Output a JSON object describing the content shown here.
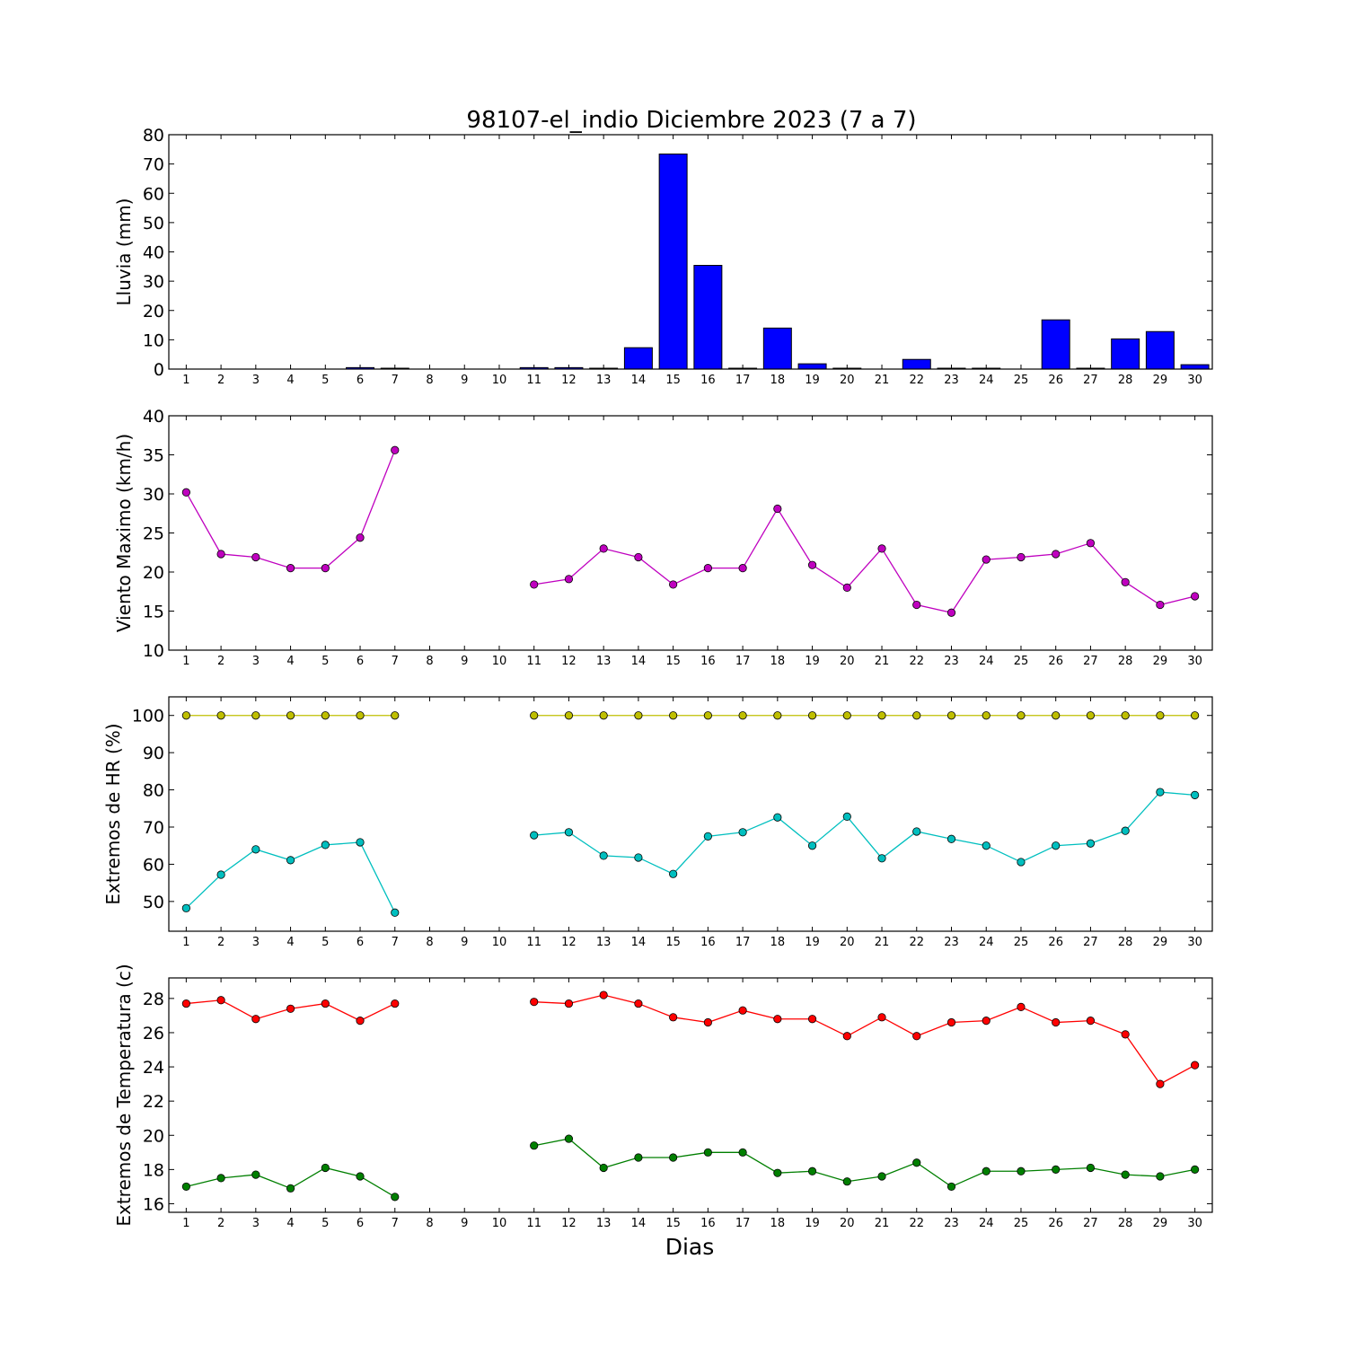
{
  "title": "98107-el_indio Diciembre 2023  (7 a 7)",
  "xlabel": "Dias",
  "chart_data": [
    {
      "type": "bar",
      "ylabel": "Lluvia (mm)",
      "ylim": [
        0,
        80
      ],
      "yticks": [
        0,
        10,
        20,
        30,
        40,
        50,
        60,
        70,
        80
      ],
      "xticks": [
        1,
        2,
        3,
        4,
        5,
        6,
        7,
        8,
        9,
        10,
        11,
        12,
        13,
        14,
        15,
        16,
        17,
        18,
        19,
        20,
        21,
        22,
        23,
        24,
        25,
        26,
        27,
        28,
        29,
        30
      ],
      "color": "#0000ff",
      "x": [
        1,
        2,
        3,
        4,
        5,
        6,
        7,
        8,
        9,
        10,
        11,
        12,
        13,
        14,
        15,
        16,
        17,
        18,
        19,
        20,
        21,
        22,
        23,
        24,
        25,
        26,
        27,
        28,
        29,
        30
      ],
      "values": [
        0,
        0,
        0,
        0,
        0,
        0.5,
        0.3,
        0,
        0,
        0,
        0.5,
        0.5,
        0.3,
        7.3,
        73.4,
        35.4,
        0.3,
        14,
        1.8,
        0.3,
        0,
        3.3,
        0.3,
        0.3,
        0,
        16.8,
        0.3,
        10.3,
        12.8,
        1.5
      ]
    },
    {
      "type": "line",
      "ylabel": "Viento Maximo (km/h)",
      "ylim": [
        10,
        40
      ],
      "yticks": [
        10,
        15,
        20,
        25,
        30,
        35,
        40
      ],
      "xticks": [
        1,
        2,
        3,
        4,
        5,
        6,
        7,
        8,
        9,
        10,
        11,
        12,
        13,
        14,
        15,
        16,
        17,
        18,
        19,
        20,
        21,
        22,
        23,
        24,
        25,
        26,
        27,
        28,
        29,
        30
      ],
      "series": [
        {
          "color": "#bf00bf",
          "x": [
            1,
            2,
            3,
            4,
            5,
            6,
            7,
            8,
            9,
            10,
            11,
            12,
            13,
            14,
            15,
            16,
            17,
            18,
            19,
            20,
            21,
            22,
            23,
            24,
            25,
            26,
            27,
            28,
            29,
            30
          ],
          "values": [
            30.2,
            22.3,
            21.9,
            20.5,
            20.5,
            24.4,
            35.6,
            null,
            null,
            null,
            18.4,
            19.1,
            23.0,
            21.9,
            18.4,
            20.5,
            20.5,
            28.1,
            20.9,
            18.0,
            23.0,
            15.8,
            14.8,
            21.6,
            21.9,
            22.3,
            23.7,
            18.7,
            15.8,
            16.9
          ]
        }
      ]
    },
    {
      "type": "line",
      "ylabel": "Extremos de HR (%)",
      "ylim": [
        42,
        105
      ],
      "yticks": [
        50,
        60,
        70,
        80,
        90,
        100
      ],
      "xticks": [
        1,
        2,
        3,
        4,
        5,
        6,
        7,
        8,
        9,
        10,
        11,
        12,
        13,
        14,
        15,
        16,
        17,
        18,
        19,
        20,
        21,
        22,
        23,
        24,
        25,
        26,
        27,
        28,
        29,
        30
      ],
      "series": [
        {
          "color": "#bfbf00",
          "x": [
            1,
            2,
            3,
            4,
            5,
            6,
            7,
            8,
            9,
            10,
            11,
            12,
            13,
            14,
            15,
            16,
            17,
            18,
            19,
            20,
            21,
            22,
            23,
            24,
            25,
            26,
            27,
            28,
            29,
            30
          ],
          "values": [
            100,
            100,
            100,
            100,
            100,
            100,
            100,
            null,
            null,
            null,
            100,
            100,
            100,
            100,
            100,
            100,
            100,
            100,
            100,
            100,
            100,
            100,
            100,
            100,
            100,
            100,
            100,
            100,
            100,
            100
          ]
        },
        {
          "color": "#00bfbf",
          "x": [
            1,
            2,
            3,
            4,
            5,
            6,
            7,
            8,
            9,
            10,
            11,
            12,
            13,
            14,
            15,
            16,
            17,
            18,
            19,
            20,
            21,
            22,
            23,
            24,
            25,
            26,
            27,
            28,
            29,
            30
          ],
          "values": [
            48.2,
            57.2,
            64.0,
            61.1,
            65.2,
            65.9,
            47.0,
            null,
            null,
            null,
            67.8,
            68.6,
            62.3,
            61.8,
            57.4,
            67.5,
            68.6,
            72.6,
            65.0,
            72.8,
            61.6,
            68.8,
            66.8,
            65.0,
            60.6,
            65.0,
            65.6,
            69.0,
            79.4,
            78.6
          ]
        }
      ]
    },
    {
      "type": "line",
      "ylabel": "Extremos de Temperatura (c)",
      "ylim": [
        15.5,
        29.2
      ],
      "yticks": [
        16,
        18,
        20,
        22,
        24,
        26,
        28
      ],
      "xticks": [
        1,
        2,
        3,
        4,
        5,
        6,
        7,
        8,
        9,
        10,
        11,
        12,
        13,
        14,
        15,
        16,
        17,
        18,
        19,
        20,
        21,
        22,
        23,
        24,
        25,
        26,
        27,
        28,
        29,
        30
      ],
      "series": [
        {
          "color": "#ff0000",
          "x": [
            1,
            2,
            3,
            4,
            5,
            6,
            7,
            8,
            9,
            10,
            11,
            12,
            13,
            14,
            15,
            16,
            17,
            18,
            19,
            20,
            21,
            22,
            23,
            24,
            25,
            26,
            27,
            28,
            29,
            30
          ],
          "values": [
            27.7,
            27.9,
            26.8,
            27.4,
            27.7,
            26.7,
            27.7,
            null,
            null,
            null,
            27.8,
            27.7,
            28.2,
            27.7,
            26.9,
            26.6,
            27.3,
            26.8,
            26.8,
            25.8,
            26.9,
            25.8,
            26.6,
            26.7,
            27.5,
            26.6,
            26.7,
            25.9,
            23.0,
            24.1
          ]
        },
        {
          "color": "#007f00",
          "x": [
            1,
            2,
            3,
            4,
            5,
            6,
            7,
            8,
            9,
            10,
            11,
            12,
            13,
            14,
            15,
            16,
            17,
            18,
            19,
            20,
            21,
            22,
            23,
            24,
            25,
            26,
            27,
            28,
            29,
            30
          ],
          "values": [
            17.0,
            17.5,
            17.7,
            16.9,
            18.1,
            17.6,
            16.4,
            null,
            null,
            null,
            19.4,
            19.8,
            18.1,
            18.7,
            18.7,
            19.0,
            19.0,
            17.8,
            17.9,
            17.3,
            17.6,
            18.4,
            17.0,
            17.9,
            17.9,
            18.0,
            18.1,
            17.7,
            17.6,
            18.0
          ]
        }
      ]
    }
  ]
}
